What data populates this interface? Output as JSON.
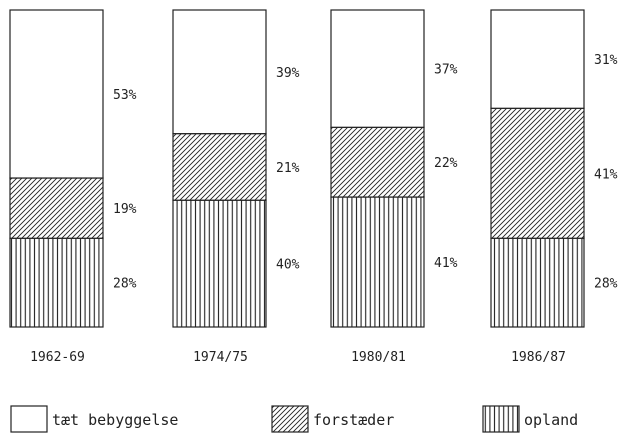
{
  "chart_data": {
    "type": "bar",
    "stacked": true,
    "percent_stacked": true,
    "categories": [
      "1962-69",
      "1974/75",
      "1980/81",
      "1986/87"
    ],
    "series": [
      {
        "name": "opland",
        "pattern": "vertical-lines",
        "values": [
          28,
          40,
          41,
          28
        ]
      },
      {
        "name": "forstæder",
        "pattern": "diagonal-hatch",
        "values": [
          19,
          21,
          22,
          41
        ]
      },
      {
        "name": "tæt bebyggelse",
        "pattern": "blank",
        "values": [
          53,
          39,
          37,
          31
        ]
      }
    ],
    "value_labels": [
      [
        "28%",
        "19%",
        "53%"
      ],
      [
        "40%",
        "21%",
        "39%"
      ],
      [
        "41%",
        "22%",
        "37%"
      ],
      [
        "28%",
        "41%",
        "31%"
      ]
    ],
    "ylim": [
      0,
      100
    ],
    "legend_position": "bottom",
    "ink_color": "#222222",
    "background_color": "#ffffff"
  }
}
